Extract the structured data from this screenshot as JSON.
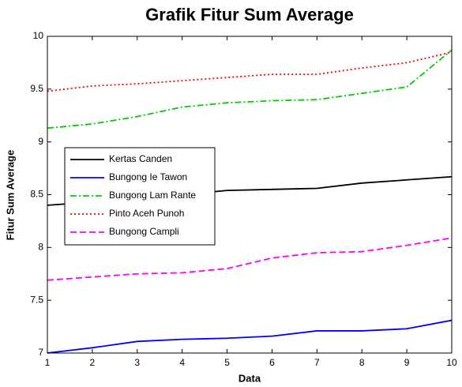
{
  "chart_data": {
    "type": "line",
    "title": "Grafik Fitur Sum Average",
    "xlabel": "Data",
    "ylabel": "Fitur Sum Average",
    "x": [
      1,
      2,
      3,
      4,
      5,
      6,
      7,
      8,
      9,
      10
    ],
    "series": [
      {
        "name": "Kertas Canden",
        "color": "#000000",
        "style": "solid",
        "values": [
          8.4,
          8.43,
          8.46,
          8.5,
          8.54,
          8.55,
          8.56,
          8.61,
          8.64,
          8.67
        ]
      },
      {
        "name": "Bungong Ie Tawon",
        "color": "#0000ff",
        "style": "solid",
        "values": [
          7.0,
          7.05,
          7.11,
          7.13,
          7.14,
          7.16,
          7.21,
          7.21,
          7.23,
          7.31
        ]
      },
      {
        "name": "Bungong Lam Rante",
        "color": "#00cc00",
        "style": "dashdot",
        "values": [
          9.13,
          9.17,
          9.24,
          9.33,
          9.37,
          9.39,
          9.4,
          9.46,
          9.52,
          9.87
        ]
      },
      {
        "name": "Pinto Aceh Punoh",
        "color": "#ff0000",
        "style": "dotted",
        "values": [
          9.48,
          9.53,
          9.55,
          9.58,
          9.61,
          9.64,
          9.64,
          9.7,
          9.75,
          9.85
        ]
      },
      {
        "name": "Bungong Campli",
        "color": "#ff00ff",
        "style": "dashed",
        "values": [
          7.69,
          7.72,
          7.75,
          7.76,
          7.8,
          7.9,
          7.95,
          7.96,
          8.02,
          8.09
        ]
      }
    ],
    "xlim": [
      1,
      10
    ],
    "xticks": [
      1,
      2,
      3,
      4,
      5,
      6,
      7,
      8,
      9,
      10
    ],
    "ylim": [
      7,
      10
    ],
    "yticks": [
      7,
      7.5,
      8,
      8.5,
      9,
      9.5,
      10
    ],
    "grid": false,
    "legend": "west"
  }
}
